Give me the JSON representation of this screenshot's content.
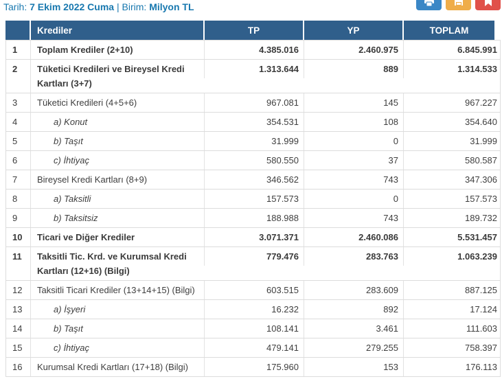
{
  "topbar": {
    "date_label": "Tarih:",
    "date_value": "7 Ekim 2022 Cuma",
    "separator": "|",
    "unit_label": "Birim:",
    "unit_value": "Milyon TL",
    "buttons": [
      {
        "name": "excel-export-button",
        "icon": "printer-icon",
        "color": "#3a87c6"
      },
      {
        "name": "save-export-button",
        "icon": "save-icon",
        "color": "#efad49"
      },
      {
        "name": "pdf-export-button",
        "icon": "bookmark-icon",
        "color": "#e0514a"
      }
    ]
  },
  "table": {
    "columns": [
      "Krediler",
      "TP",
      "YP",
      "TOPLAM"
    ],
    "rows": [
      {
        "no": "1",
        "label": "Toplam Krediler (2+10)",
        "tp": "4.385.016",
        "yp": "2.460.975",
        "toplam": "6.845.991",
        "style": "bold"
      },
      {
        "no": "2",
        "label": "Tüketici Kredileri ve Bireysel Kredi Kartları (3+7)",
        "tp": "1.313.644",
        "yp": "889",
        "toplam": "1.314.533",
        "style": "bold"
      },
      {
        "no": "3",
        "label": "Tüketici Kredileri (4+5+6)",
        "tp": "967.081",
        "yp": "145",
        "toplam": "967.227",
        "style": "normal"
      },
      {
        "no": "4",
        "label": "a) Konut",
        "tp": "354.531",
        "yp": "108",
        "toplam": "354.640",
        "style": "sub"
      },
      {
        "no": "5",
        "label": "b) Taşıt",
        "tp": "31.999",
        "yp": "0",
        "toplam": "31.999",
        "style": "sub"
      },
      {
        "no": "6",
        "label": "c) İhtiyaç",
        "tp": "580.550",
        "yp": "37",
        "toplam": "580.587",
        "style": "sub"
      },
      {
        "no": "7",
        "label": "Bireysel Kredi Kartları (8+9)",
        "tp": "346.562",
        "yp": "743",
        "toplam": "347.306",
        "style": "normal"
      },
      {
        "no": "8",
        "label": "a) Taksitli",
        "tp": "157.573",
        "yp": "0",
        "toplam": "157.573",
        "style": "sub"
      },
      {
        "no": "9",
        "label": "b) Taksitsiz",
        "tp": "188.988",
        "yp": "743",
        "toplam": "189.732",
        "style": "sub"
      },
      {
        "no": "10",
        "label": "Ticari ve Diğer Krediler",
        "tp": "3.071.371",
        "yp": "2.460.086",
        "toplam": "5.531.457",
        "style": "bold"
      },
      {
        "no": "11",
        "label": "Taksitli Tic. Krd. ve Kurumsal Kredi Kartları (12+16) (Bilgi)",
        "tp": "779.476",
        "yp": "283.763",
        "toplam": "1.063.239",
        "style": "bold"
      },
      {
        "no": "12",
        "label": "Taksitli Ticari Krediler (13+14+15) (Bilgi)",
        "tp": "603.515",
        "yp": "283.609",
        "toplam": "887.125",
        "style": "normal"
      },
      {
        "no": "13",
        "label": "a) İşyeri",
        "tp": "16.232",
        "yp": "892",
        "toplam": "17.124",
        "style": "sub"
      },
      {
        "no": "14",
        "label": "b) Taşıt",
        "tp": "108.141",
        "yp": "3.461",
        "toplam": "111.603",
        "style": "sub"
      },
      {
        "no": "15",
        "label": "c) İhtiyaç",
        "tp": "479.141",
        "yp": "279.255",
        "toplam": "758.397",
        "style": "sub"
      },
      {
        "no": "16",
        "label": "Kurumsal Kredi Kartları (17+18) (Bilgi)",
        "tp": "175.960",
        "yp": "153",
        "toplam": "176.113",
        "style": "normal"
      }
    ]
  },
  "colors": {
    "header_bg": "#305f8b",
    "date_text": "#1878af",
    "button_blue": "#3a87c6",
    "button_orange": "#efad49",
    "button_red": "#e0514a",
    "row_border": "#dcdcdc",
    "body_text": "#3e3e3e"
  }
}
